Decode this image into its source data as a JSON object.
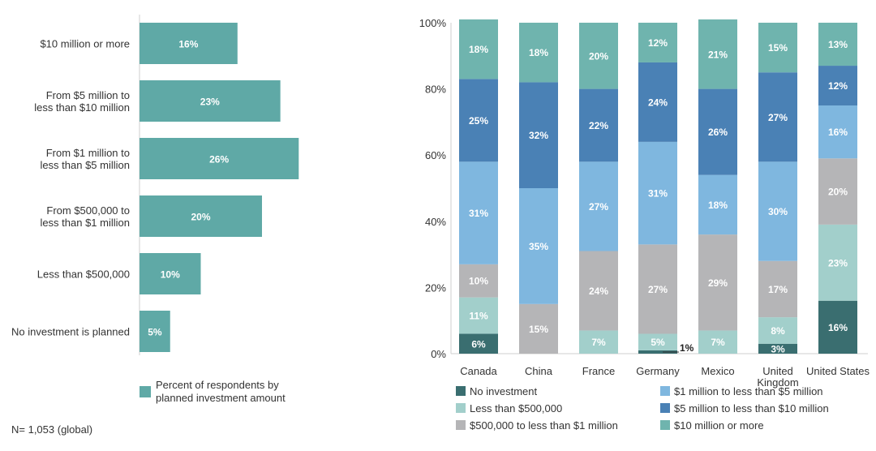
{
  "note": "N= 1,053 (global)",
  "colors": {
    "left_bar": "#5fa9a6",
    "no_investment": "#3a6e70",
    "lt_500k": "#a2cfcb",
    "500k_1m": "#b5b5b7",
    "1m_5m": "#7fb7df",
    "5m_10m": "#4a81b5",
    "10m_plus": "#6fb4ae"
  },
  "chart_data": [
    {
      "type": "bar",
      "orientation": "horizontal",
      "categories": [
        "$10 million or more",
        "From $5 million to less than $10 million",
        "From $1 million to less than $5 million",
        "From $500,000 to less than $1 million",
        "Less than $500,000",
        "No investment is planned"
      ],
      "category_lines": [
        [
          "$10 million or more"
        ],
        [
          "From $5 million to",
          "less than $10 million"
        ],
        [
          "From $1 million to",
          "less than $5 million"
        ],
        [
          "From $500,000 to",
          "less than $1 million"
        ],
        [
          "Less than $500,000"
        ],
        [
          "No investment is planned"
        ]
      ],
      "values": [
        16,
        23,
        26,
        20,
        10,
        5
      ],
      "data_labels": [
        "16%",
        "23%",
        "26%",
        "20%",
        "10%",
        "5%"
      ],
      "legend": [
        "Percent of respondents by",
        "planned investment amount"
      ],
      "legend_placement": "bottom"
    },
    {
      "type": "bar",
      "stacked": true,
      "categories": [
        "Canada",
        "China",
        "France",
        "Germany",
        "Mexico",
        "United Kingdom",
        "United States"
      ],
      "category_lines": [
        [
          "Canada"
        ],
        [
          "China"
        ],
        [
          "France"
        ],
        [
          "Germany"
        ],
        [
          "Mexico"
        ],
        [
          "United",
          "Kingdom"
        ],
        [
          "United States"
        ]
      ],
      "ylim": [
        0,
        100
      ],
      "yticks": [
        "0%",
        "20%",
        "40%",
        "60%",
        "80%",
        "100%"
      ],
      "series": [
        {
          "name": "No investment",
          "key": "no_investment",
          "values": [
            6,
            0,
            0,
            1,
            0,
            3,
            16
          ],
          "labels": [
            "6%",
            "",
            "",
            "1%",
            "",
            "3%",
            "16%"
          ]
        },
        {
          "name": "Less than $500,000",
          "key": "lt_500k",
          "values": [
            11,
            0,
            7,
            5,
            7,
            8,
            23
          ],
          "labels": [
            "11%",
            "",
            "7%",
            "5%",
            "7%",
            "8%",
            "23%"
          ]
        },
        {
          "name": "$500,000 to less than $1 million",
          "key": "500k_1m",
          "values": [
            10,
            15,
            24,
            27,
            29,
            17,
            20
          ],
          "labels": [
            "10%",
            "15%",
            "24%",
            "27%",
            "29%",
            "17%",
            "20%"
          ]
        },
        {
          "name": "$1 million to less than $5 million",
          "key": "1m_5m",
          "values": [
            31,
            35,
            27,
            31,
            18,
            30,
            16
          ],
          "labels": [
            "31%",
            "35%",
            "27%",
            "31%",
            "18%",
            "30%",
            "16%"
          ]
        },
        {
          "name": "$5 million to less than $10 million",
          "key": "5m_10m",
          "values": [
            25,
            32,
            22,
            24,
            26,
            27,
            12
          ],
          "labels": [
            "25%",
            "32%",
            "22%",
            "24%",
            "26%",
            "27%",
            "12%"
          ]
        },
        {
          "name": "$10 million or more",
          "key": "10m_plus",
          "values": [
            18,
            18,
            20,
            12,
            21,
            15,
            13
          ],
          "labels": [
            "18%",
            "18%",
            "20%",
            "12%",
            "21%",
            "15%",
            "13%"
          ]
        }
      ],
      "legend_order": [
        0,
        3,
        1,
        4,
        2,
        5
      ],
      "legend_placement": "bottom",
      "grid": false
    }
  ]
}
